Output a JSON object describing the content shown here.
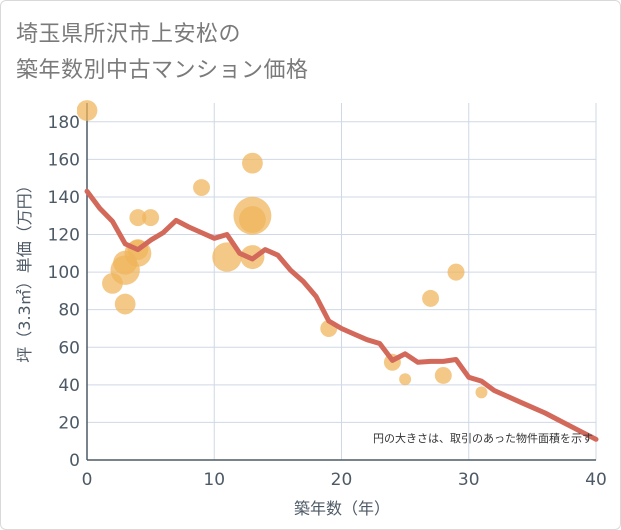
{
  "title": {
    "line1": "埼玉県所沢市上安松の",
    "line2": "築年数別中古マンション価格"
  },
  "chart_data": {
    "type": "scatter",
    "xlabel": "築年数（年）",
    "ylabel": "坪（3.3㎡）単価（万円）",
    "xlim": [
      0,
      40
    ],
    "ylim": [
      0,
      190
    ],
    "xticks": [
      0,
      10,
      20,
      30,
      40
    ],
    "yticks": [
      0,
      20,
      40,
      60,
      80,
      100,
      120,
      140,
      160,
      180
    ],
    "grid": true,
    "note": "円の大きさは、取引のあった物件面積を示す",
    "colors": {
      "bubble": "#f0b45a",
      "line": "#d2695a",
      "grid": "#cfd8e6",
      "axis": "#4d5a66"
    },
    "trend": {
      "x": [
        0,
        1,
        2,
        3,
        4,
        5,
        6,
        7,
        8,
        9,
        10,
        11,
        12,
        13,
        14,
        15,
        16,
        17,
        18,
        19,
        20,
        21,
        22,
        23,
        24,
        25,
        26,
        27,
        28,
        29,
        30,
        31,
        32,
        33,
        34,
        35,
        36,
        37,
        38,
        39,
        40
      ],
      "y": [
        143,
        134,
        127,
        115,
        112,
        117,
        121,
        127.5,
        124,
        121,
        118,
        120,
        110,
        107,
        112,
        109,
        101,
        95,
        87,
        74,
        70,
        67,
        64,
        62,
        53,
        56.5,
        52,
        52.5,
        52.5,
        53.5,
        44,
        42,
        37,
        34,
        31,
        28,
        25,
        21.5,
        18,
        14.5,
        11
      ]
    },
    "points": [
      {
        "x": 0,
        "y": 186,
        "size": 3
      },
      {
        "x": 2,
        "y": 94,
        "size": 3
      },
      {
        "x": 3,
        "y": 101,
        "size": 6
      },
      {
        "x": 3,
        "y": 105,
        "size": 4
      },
      {
        "x": 3,
        "y": 83,
        "size": 3
      },
      {
        "x": 4,
        "y": 110,
        "size": 5
      },
      {
        "x": 4,
        "y": 112,
        "size": 3
      },
      {
        "x": 4,
        "y": 129,
        "size": 2
      },
      {
        "x": 5,
        "y": 129,
        "size": 2
      },
      {
        "x": 9,
        "y": 145,
        "size": 2
      },
      {
        "x": 11,
        "y": 108,
        "size": 6
      },
      {
        "x": 13,
        "y": 130,
        "size": 10
      },
      {
        "x": 13,
        "y": 128,
        "size": 5
      },
      {
        "x": 13,
        "y": 108,
        "size": 4
      },
      {
        "x": 13,
        "y": 158,
        "size": 3
      },
      {
        "x": 19,
        "y": 70,
        "size": 2
      },
      {
        "x": 24,
        "y": 52,
        "size": 2
      },
      {
        "x": 25,
        "y": 43,
        "size": 1
      },
      {
        "x": 27,
        "y": 86,
        "size": 2
      },
      {
        "x": 28,
        "y": 45,
        "size": 2
      },
      {
        "x": 29,
        "y": 100,
        "size": 2
      },
      {
        "x": 31,
        "y": 36,
        "size": 1
      }
    ]
  }
}
